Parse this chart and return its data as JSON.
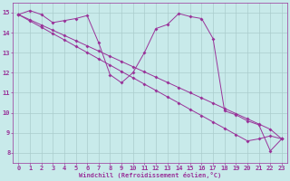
{
  "background_color": "#c8eaea",
  "grid_color": "#aacccc",
  "line_color": "#993399",
  "xlabel": "Windchill (Refroidissement éolien,°C)",
  "ylim": [
    7.5,
    15.5
  ],
  "xlim": [
    -0.5,
    23.5
  ],
  "yticks": [
    8,
    9,
    10,
    11,
    12,
    13,
    14,
    15
  ],
  "xticks": [
    0,
    1,
    2,
    3,
    4,
    5,
    6,
    7,
    8,
    9,
    10,
    11,
    12,
    13,
    14,
    15,
    16,
    17,
    18,
    19,
    20,
    21,
    22,
    23
  ],
  "series1_x": [
    0,
    1,
    2,
    3,
    4,
    5,
    6,
    7,
    8,
    9,
    10,
    11,
    12,
    13,
    14,
    15,
    16,
    17,
    18,
    19,
    20,
    21,
    22,
    23
  ],
  "series1_y": [
    14.9,
    15.1,
    14.9,
    14.5,
    14.6,
    14.7,
    14.85,
    13.5,
    11.9,
    11.5,
    12.0,
    13.0,
    14.2,
    14.4,
    14.95,
    14.8,
    14.7,
    13.7,
    10.1,
    9.9,
    9.6,
    9.4,
    8.1,
    8.7
  ],
  "series2_x": [
    0,
    1,
    2,
    3,
    4,
    5,
    6,
    7,
    8,
    9,
    10,
    11,
    12,
    13,
    14,
    15,
    16,
    17,
    18,
    19,
    20,
    21,
    22,
    23
  ],
  "series2_y": [
    14.9,
    14.58,
    14.27,
    13.95,
    13.64,
    13.32,
    13.01,
    12.69,
    12.38,
    12.06,
    11.75,
    11.43,
    11.12,
    10.8,
    10.49,
    10.17,
    9.86,
    9.54,
    9.23,
    8.91,
    8.6,
    8.7,
    8.85,
    8.7
  ],
  "series3_x": [
    0,
    1,
    2,
    3,
    4,
    5,
    6,
    7,
    8,
    9,
    10,
    11,
    12,
    13,
    14,
    15,
    16,
    17,
    18,
    19,
    20,
    21,
    22,
    23
  ],
  "series3_y": [
    14.9,
    14.64,
    14.38,
    14.12,
    13.86,
    13.6,
    13.34,
    13.08,
    12.82,
    12.56,
    12.3,
    12.04,
    11.78,
    11.52,
    11.26,
    11.0,
    10.74,
    10.48,
    10.22,
    9.96,
    9.7,
    9.44,
    9.18,
    8.7
  ]
}
